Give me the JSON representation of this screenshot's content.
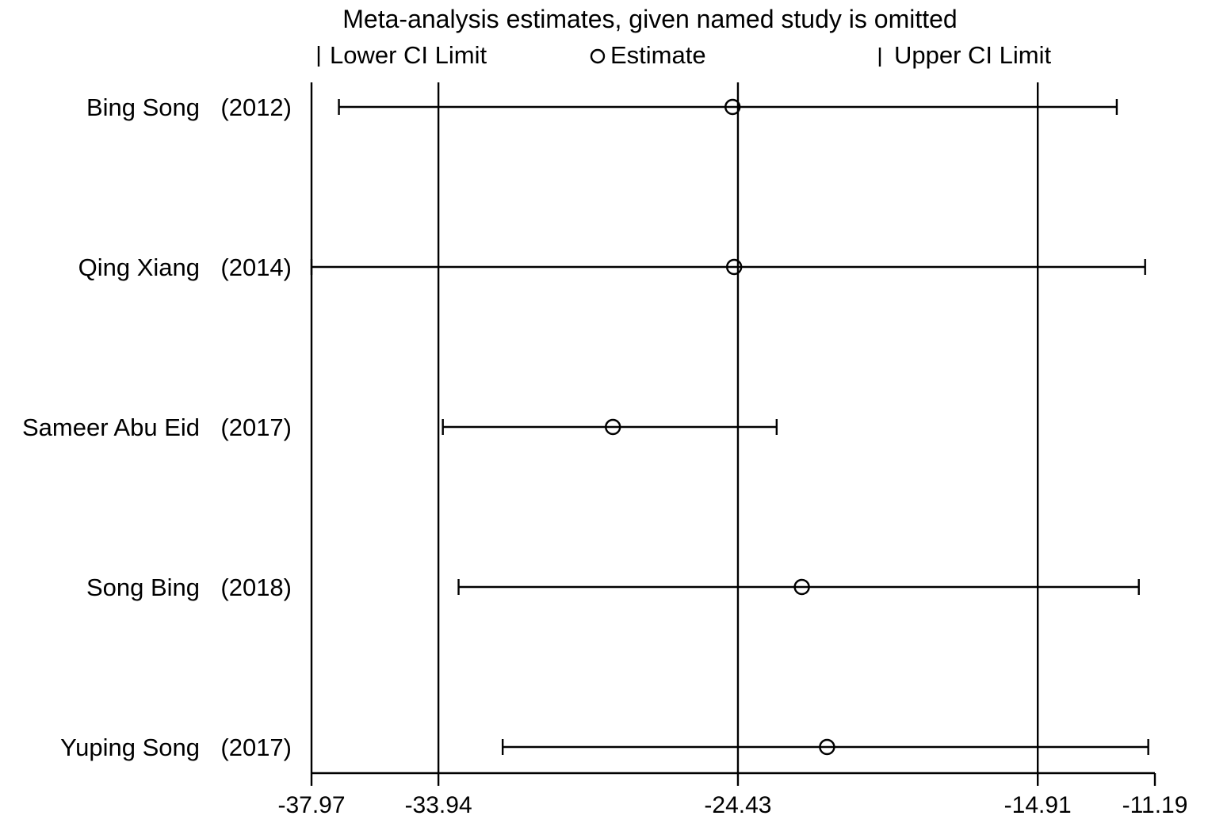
{
  "chart_data": {
    "type": "forest",
    "title": "Meta-analysis estimates, given named study is omitted",
    "legend": {
      "placement": "top",
      "entries": [
        {
          "symbol": "lower-cap-icon",
          "label": "Lower CI Limit"
        },
        {
          "symbol": "circle-icon",
          "label": "Estimate"
        },
        {
          "symbol": "upper-cap-icon",
          "label": "Upper CI Limit"
        }
      ]
    },
    "xlim": [
      -37.97,
      -11.19
    ],
    "x_ticks": [
      -37.97,
      -33.94,
      -24.43,
      -14.91,
      -11.19
    ],
    "x_tick_labels": [
      "-37.97",
      "-33.94",
      "-24.43",
      "-14.91",
      "-11.19"
    ],
    "reference_lines": [
      -33.94,
      -24.43,
      -14.91
    ],
    "studies": [
      {
        "name": "Bing Song",
        "year": "(2012)",
        "lower": -37.1,
        "estimate": -24.6,
        "upper": -12.4
      },
      {
        "name": "Qing Xiang",
        "year": "(2014)",
        "lower": -37.97,
        "estimate": -24.55,
        "upper": -11.5
      },
      {
        "name": "Sameer Abu Eid",
        "year": "(2017)",
        "lower": -33.8,
        "estimate": -28.4,
        "upper": -23.2
      },
      {
        "name": "Song Bing",
        "year": "(2018)",
        "lower": -33.3,
        "estimate": -22.4,
        "upper": -11.7
      },
      {
        "name": "Yuping Song",
        "year": "(2017)",
        "lower": -31.9,
        "estimate": -21.6,
        "upper": -11.4
      }
    ]
  }
}
